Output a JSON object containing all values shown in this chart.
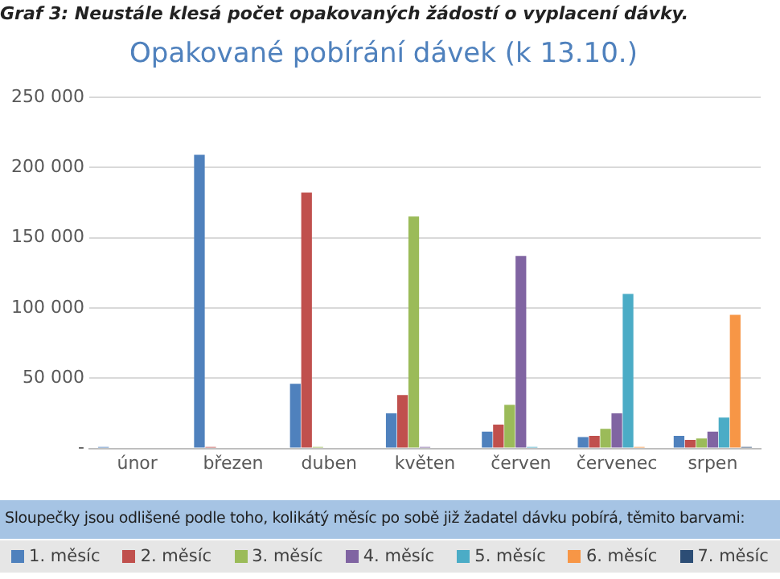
{
  "chart_data": {
    "type": "bar",
    "title": "Opakované pobírání dávek (k 13.10.)",
    "categories": [
      "únor",
      "březen",
      "duben",
      "květen",
      "červen",
      "červenec",
      "srpen"
    ],
    "series": [
      {
        "name": "1. měsíc",
        "color": "#4f81bd",
        "values": [
          1000,
          209000,
          46000,
          25000,
          12000,
          8000,
          9000
        ]
      },
      {
        "name": "2. měsíc",
        "color": "#c0504d",
        "values": [
          null,
          1000,
          182000,
          38000,
          17000,
          9000,
          6000
        ]
      },
      {
        "name": "3. měsíc",
        "color": "#9bbb59",
        "values": [
          null,
          null,
          1000,
          165000,
          31000,
          14000,
          7000
        ]
      },
      {
        "name": "4. měsíc",
        "color": "#8064a2",
        "values": [
          null,
          null,
          null,
          1000,
          137000,
          25000,
          12000
        ]
      },
      {
        "name": "5. měsíc",
        "color": "#4bacc6",
        "values": [
          null,
          null,
          null,
          null,
          1000,
          110000,
          22000
        ]
      },
      {
        "name": "6. měsíc",
        "color": "#f79646",
        "values": [
          null,
          null,
          null,
          null,
          null,
          1000,
          95000
        ]
      },
      {
        "name": "7. měsíc",
        "color": "#2c4d75",
        "values": [
          null,
          null,
          null,
          null,
          null,
          null,
          1000
        ]
      }
    ],
    "ylim": [
      0,
      250000
    ],
    "yticks": [
      {
        "value": 0,
        "label": "-"
      },
      {
        "value": 50000,
        "label": "50 000"
      },
      {
        "value": 100000,
        "label": "100 000"
      },
      {
        "value": 150000,
        "label": "150 000"
      },
      {
        "value": 200000,
        "label": "200 000"
      },
      {
        "value": 250000,
        "label": "250 000"
      }
    ],
    "grid": "y",
    "legend": "bottom",
    "annotations": [
      "Graf 3: Neustále klesá počet opakovaných žádostí o vyplacení dávky.",
      "Sloupečky jsou odlišené podle toho, kolikátý měsíc po sobě již žadatel dávku pobírá, těmito barvami:"
    ]
  }
}
